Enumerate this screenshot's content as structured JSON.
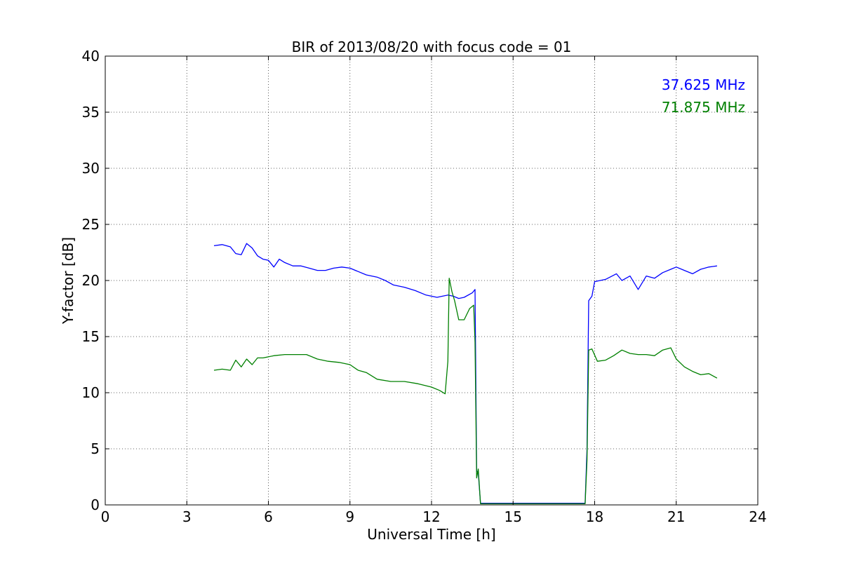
{
  "chart_data": {
    "type": "line",
    "title": "BIR of 2013/08/20 with focus code = 01",
    "xlabel": "Universal Time [h]",
    "ylabel": "Y-factor [dB]",
    "xlim": [
      0,
      24
    ],
    "ylim": [
      0,
      40
    ],
    "xticks": [
      0,
      3,
      6,
      9,
      12,
      15,
      18,
      21,
      24
    ],
    "yticks": [
      0,
      5,
      10,
      15,
      20,
      25,
      30,
      35,
      40
    ],
    "grid": true,
    "legend_position": "top-right",
    "series": [
      {
        "name": "37.625 MHz",
        "color": "#0000ff",
        "points": [
          [
            4.0,
            23.1
          ],
          [
            4.3,
            23.2
          ],
          [
            4.6,
            23.0
          ],
          [
            4.8,
            22.4
          ],
          [
            5.0,
            22.3
          ],
          [
            5.2,
            23.3
          ],
          [
            5.4,
            22.9
          ],
          [
            5.6,
            22.2
          ],
          [
            5.8,
            21.9
          ],
          [
            6.0,
            21.8
          ],
          [
            6.2,
            21.2
          ],
          [
            6.4,
            21.9
          ],
          [
            6.6,
            21.6
          ],
          [
            6.9,
            21.3
          ],
          [
            7.2,
            21.3
          ],
          [
            7.5,
            21.1
          ],
          [
            7.8,
            20.9
          ],
          [
            8.1,
            20.9
          ],
          [
            8.4,
            21.1
          ],
          [
            8.7,
            21.2
          ],
          [
            9.0,
            21.1
          ],
          [
            9.3,
            20.8
          ],
          [
            9.6,
            20.5
          ],
          [
            10.0,
            20.3
          ],
          [
            10.3,
            20.0
          ],
          [
            10.6,
            19.6
          ],
          [
            11.0,
            19.4
          ],
          [
            11.4,
            19.1
          ],
          [
            11.8,
            18.7
          ],
          [
            12.2,
            18.5
          ],
          [
            12.4,
            18.6
          ],
          [
            12.6,
            18.7
          ],
          [
            12.8,
            18.6
          ],
          [
            13.0,
            18.4
          ],
          [
            13.2,
            18.5
          ],
          [
            13.5,
            18.9
          ],
          [
            13.6,
            19.2
          ],
          [
            13.66,
            3.0
          ],
          [
            13.72,
            2.9
          ],
          [
            13.8,
            0.15
          ],
          [
            15.0,
            0.15
          ],
          [
            16.5,
            0.15
          ],
          [
            17.65,
            0.15
          ],
          [
            17.72,
            5.0
          ],
          [
            17.78,
            18.2
          ],
          [
            17.9,
            18.6
          ],
          [
            18.0,
            19.9
          ],
          [
            18.4,
            20.1
          ],
          [
            18.8,
            20.6
          ],
          [
            19.0,
            20.0
          ],
          [
            19.3,
            20.4
          ],
          [
            19.6,
            19.2
          ],
          [
            19.9,
            20.4
          ],
          [
            20.2,
            20.2
          ],
          [
            20.5,
            20.7
          ],
          [
            20.8,
            21.0
          ],
          [
            21.0,
            21.2
          ],
          [
            21.3,
            20.9
          ],
          [
            21.6,
            20.6
          ],
          [
            21.9,
            21.0
          ],
          [
            22.2,
            21.2
          ],
          [
            22.5,
            21.3
          ]
        ]
      },
      {
        "name": "71.875 MHz",
        "color": "#008000",
        "points": [
          [
            4.0,
            12.0
          ],
          [
            4.3,
            12.1
          ],
          [
            4.6,
            12.0
          ],
          [
            4.8,
            12.9
          ],
          [
            5.0,
            12.3
          ],
          [
            5.2,
            13.0
          ],
          [
            5.4,
            12.5
          ],
          [
            5.6,
            13.1
          ],
          [
            5.8,
            13.1
          ],
          [
            6.2,
            13.3
          ],
          [
            6.6,
            13.4
          ],
          [
            7.0,
            13.4
          ],
          [
            7.4,
            13.4
          ],
          [
            7.8,
            13.0
          ],
          [
            8.2,
            12.8
          ],
          [
            8.6,
            12.7
          ],
          [
            9.0,
            12.5
          ],
          [
            9.3,
            12.0
          ],
          [
            9.6,
            11.8
          ],
          [
            10.0,
            11.2
          ],
          [
            10.5,
            11.0
          ],
          [
            11.0,
            11.0
          ],
          [
            11.5,
            10.8
          ],
          [
            12.0,
            10.5
          ],
          [
            12.3,
            10.2
          ],
          [
            12.5,
            9.9
          ],
          [
            12.6,
            12.8
          ],
          [
            12.65,
            20.2
          ],
          [
            12.75,
            19.0
          ],
          [
            12.85,
            18.2
          ],
          [
            13.0,
            16.5
          ],
          [
            13.2,
            16.5
          ],
          [
            13.4,
            17.5
          ],
          [
            13.55,
            17.8
          ],
          [
            13.6,
            14.5
          ],
          [
            13.66,
            2.4
          ],
          [
            13.72,
            3.2
          ],
          [
            13.8,
            0.1
          ],
          [
            15.0,
            0.1
          ],
          [
            16.5,
            0.1
          ],
          [
            17.65,
            0.1
          ],
          [
            17.72,
            4.0
          ],
          [
            17.78,
            13.8
          ],
          [
            17.9,
            13.9
          ],
          [
            18.1,
            12.8
          ],
          [
            18.4,
            12.9
          ],
          [
            18.7,
            13.3
          ],
          [
            19.0,
            13.8
          ],
          [
            19.3,
            13.5
          ],
          [
            19.6,
            13.4
          ],
          [
            19.9,
            13.4
          ],
          [
            20.2,
            13.3
          ],
          [
            20.5,
            13.8
          ],
          [
            20.8,
            14.0
          ],
          [
            21.0,
            13.0
          ],
          [
            21.3,
            12.3
          ],
          [
            21.6,
            11.9
          ],
          [
            21.9,
            11.6
          ],
          [
            22.2,
            11.7
          ],
          [
            22.5,
            11.3
          ]
        ]
      }
    ]
  }
}
